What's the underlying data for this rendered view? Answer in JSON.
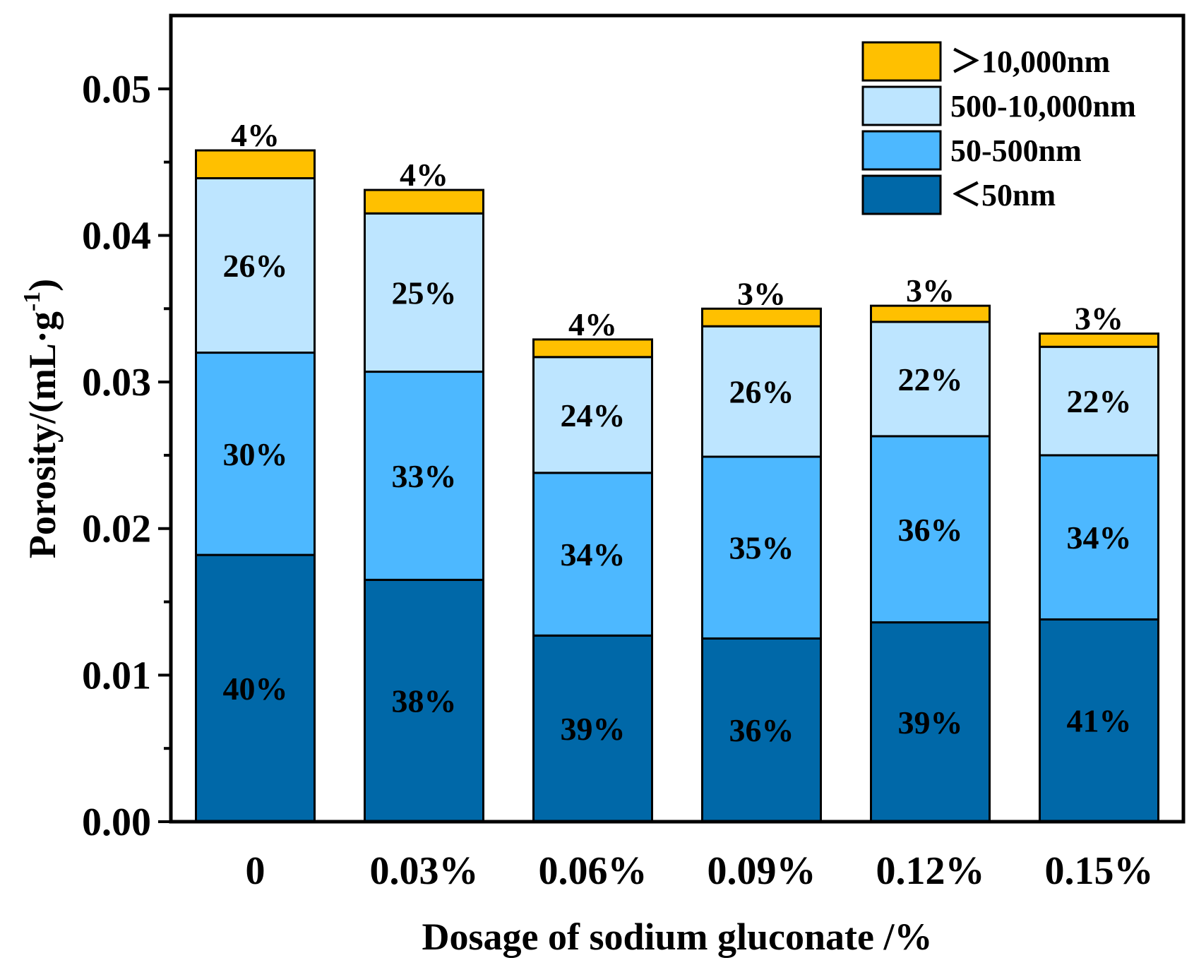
{
  "chart_data": {
    "type": "bar",
    "stacked": true,
    "title": "",
    "xlabel": "Dosage of sodium gluconate /%",
    "ylabel": "Porosity/(mL·g",
    "ylabel_superscript": "-1",
    "ylabel_close": ")",
    "ylim": [
      0,
      0.055
    ],
    "yticks": [
      "0.00",
      "0.01",
      "0.02",
      "0.03",
      "0.04",
      "0.05"
    ],
    "ytick_values": [
      0,
      0.01,
      0.02,
      0.03,
      0.04,
      0.05
    ],
    "grid": false,
    "legend_position": "top-right",
    "categories": [
      "0",
      "0.03%",
      "0.06%",
      "0.09%",
      "0.12%",
      "0.15%"
    ],
    "series": [
      {
        "name": "<50nm",
        "color": "#0068A8",
        "values": [
          0.0182,
          0.0165,
          0.0127,
          0.0125,
          0.0136,
          0.0138
        ],
        "labels": [
          "40%",
          "38%",
          "39%",
          "36%",
          "39%",
          "41%"
        ]
      },
      {
        "name": "50-500nm",
        "color": "#4DB8FF",
        "values": [
          0.0138,
          0.0142,
          0.0111,
          0.0124,
          0.0127,
          0.0112
        ],
        "labels": [
          "30%",
          "33%",
          "34%",
          "35%",
          "36%",
          "34%"
        ]
      },
      {
        "name": "500-10,000nm",
        "color": "#BDE5FF",
        "values": [
          0.0119,
          0.0108,
          0.0079,
          0.0089,
          0.0078,
          0.0074
        ],
        "labels": [
          "26%",
          "25%",
          "24%",
          "26%",
          "22%",
          "22%"
        ]
      },
      {
        "name": ">10,000nm",
        "color": "#FFC000",
        "values": [
          0.0019,
          0.0016,
          0.0012,
          0.0012,
          0.0011,
          0.0009
        ],
        "labels": [
          "4%",
          "4%",
          "4%",
          "3%",
          "3%",
          "3%"
        ]
      }
    ],
    "legend_order": [
      3,
      2,
      1,
      0
    ],
    "legend_labels": [
      "＞10,000nm",
      "500-10,000nm",
      "50-500nm",
      "＜50nm"
    ]
  }
}
